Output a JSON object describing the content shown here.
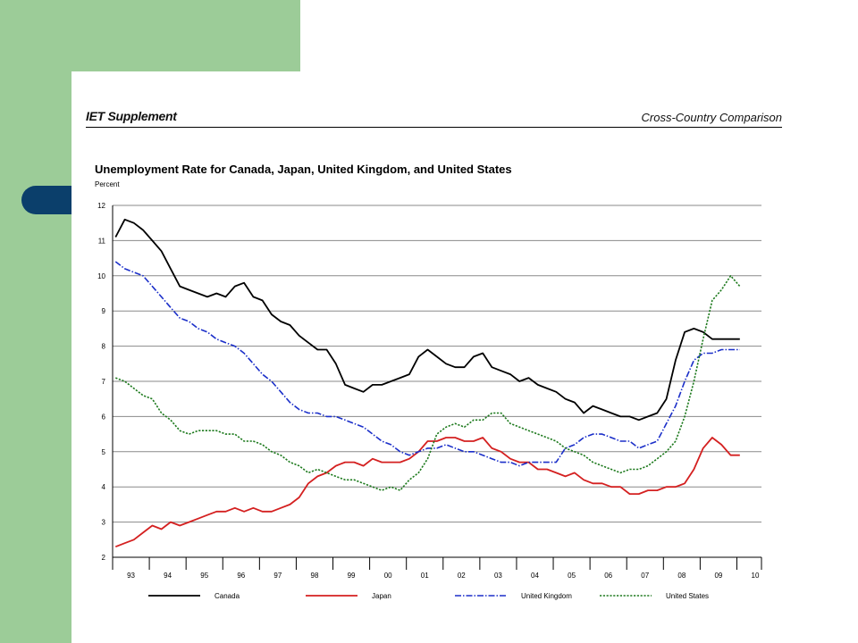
{
  "header": {
    "left": "IET Supplement",
    "right": "Cross-Country Comparison"
  },
  "colors": {
    "sidebar_green": "#9ccc98",
    "tab_navy": "#0b3f6b",
    "canada": "#000000",
    "japan": "#d42020",
    "united_kingdom": "#1b2fc9",
    "united_states": "#1e7a1e"
  },
  "chart_data": {
    "type": "line",
    "title": "Unemployment Rate for Canada, Japan, United Kingdom, and United States",
    "ylabel": "Percent",
    "xlabel": "",
    "ylim": [
      2,
      12
    ],
    "yticks": [
      2,
      3,
      4,
      5,
      6,
      7,
      8,
      9,
      10,
      11,
      12
    ],
    "xlim": [
      1993.0,
      2010.67
    ],
    "xticks": [
      "93",
      "94",
      "95",
      "96",
      "97",
      "98",
      "99",
      "00",
      "01",
      "02",
      "03",
      "04",
      "05",
      "06",
      "07",
      "08",
      "09",
      "10"
    ],
    "grid": "horizontal",
    "legend_position": "bottom",
    "series": [
      {
        "name": "Canada",
        "color": "#000000",
        "style": "solid",
        "x": [
          1993.08,
          1993.33,
          1993.58,
          1993.83,
          1994.08,
          1994.33,
          1994.58,
          1994.83,
          1995.08,
          1995.33,
          1995.58,
          1995.83,
          1996.08,
          1996.33,
          1996.58,
          1996.83,
          1997.08,
          1997.33,
          1997.58,
          1997.83,
          1998.08,
          1998.33,
          1998.58,
          1998.83,
          1999.08,
          1999.33,
          1999.58,
          1999.83,
          2000.08,
          2000.33,
          2000.58,
          2000.83,
          2001.08,
          2001.33,
          2001.58,
          2001.83,
          2002.08,
          2002.33,
          2002.58,
          2002.83,
          2003.08,
          2003.33,
          2003.58,
          2003.83,
          2004.08,
          2004.33,
          2004.58,
          2004.83,
          2005.08,
          2005.33,
          2005.58,
          2005.83,
          2006.08,
          2006.33,
          2006.58,
          2006.83,
          2007.08,
          2007.33,
          2007.58,
          2007.83,
          2008.08,
          2008.33,
          2008.58,
          2008.83,
          2009.08,
          2009.33,
          2009.58,
          2009.83,
          2010.08
        ],
        "values": [
          11.1,
          11.6,
          11.5,
          11.3,
          11.0,
          10.7,
          10.2,
          9.7,
          9.6,
          9.5,
          9.4,
          9.5,
          9.4,
          9.7,
          9.8,
          9.4,
          9.3,
          8.9,
          8.7,
          8.6,
          8.3,
          8.1,
          7.9,
          7.9,
          7.5,
          6.9,
          6.8,
          6.7,
          6.9,
          6.9,
          7.0,
          7.1,
          7.2,
          7.7,
          7.9,
          7.7,
          7.5,
          7.4,
          7.4,
          7.7,
          7.8,
          7.4,
          7.3,
          7.2,
          7.0,
          7.1,
          6.9,
          6.8,
          6.7,
          6.5,
          6.4,
          6.1,
          6.3,
          6.2,
          6.1,
          6.0,
          6.0,
          5.9,
          6.0,
          6.1,
          6.5,
          7.6,
          8.4,
          8.5,
          8.4,
          8.2,
          8.2,
          8.2,
          8.2
        ]
      },
      {
        "name": "Japan",
        "color": "#d42020",
        "style": "solid",
        "x": [
          1993.08,
          1993.33,
          1993.58,
          1993.83,
          1994.08,
          1994.33,
          1994.58,
          1994.83,
          1995.08,
          1995.33,
          1995.58,
          1995.83,
          1996.08,
          1996.33,
          1996.58,
          1996.83,
          1997.08,
          1997.33,
          1997.58,
          1997.83,
          1998.08,
          1998.33,
          1998.58,
          1998.83,
          1999.08,
          1999.33,
          1999.58,
          1999.83,
          2000.08,
          2000.33,
          2000.58,
          2000.83,
          2001.08,
          2001.33,
          2001.58,
          2001.83,
          2002.08,
          2002.33,
          2002.58,
          2002.83,
          2003.08,
          2003.33,
          2003.58,
          2003.83,
          2004.08,
          2004.33,
          2004.58,
          2004.83,
          2005.08,
          2005.33,
          2005.58,
          2005.83,
          2006.08,
          2006.33,
          2006.58,
          2006.83,
          2007.08,
          2007.33,
          2007.58,
          2007.83,
          2008.08,
          2008.33,
          2008.58,
          2008.83,
          2009.08,
          2009.33,
          2009.58,
          2009.83,
          2010.08
        ],
        "values": [
          2.3,
          2.4,
          2.5,
          2.7,
          2.9,
          2.8,
          3.0,
          2.9,
          3.0,
          3.1,
          3.2,
          3.3,
          3.3,
          3.4,
          3.3,
          3.4,
          3.3,
          3.3,
          3.4,
          3.5,
          3.7,
          4.1,
          4.3,
          4.4,
          4.6,
          4.7,
          4.7,
          4.6,
          4.8,
          4.7,
          4.7,
          4.7,
          4.8,
          5.0,
          5.3,
          5.3,
          5.4,
          5.4,
          5.3,
          5.3,
          5.4,
          5.1,
          5.0,
          4.8,
          4.7,
          4.7,
          4.5,
          4.5,
          4.4,
          4.3,
          4.4,
          4.2,
          4.1,
          4.1,
          4.0,
          4.0,
          3.8,
          3.8,
          3.9,
          3.9,
          4.0,
          4.0,
          4.1,
          4.5,
          5.1,
          5.4,
          5.2,
          4.9,
          4.9
        ]
      },
      {
        "name": "United Kingdom",
        "color": "#1b2fc9",
        "style": "dashdot",
        "x": [
          1993.08,
          1993.33,
          1993.58,
          1993.83,
          1994.08,
          1994.33,
          1994.58,
          1994.83,
          1995.08,
          1995.33,
          1995.58,
          1995.83,
          1996.08,
          1996.33,
          1996.58,
          1996.83,
          1997.08,
          1997.33,
          1997.58,
          1997.83,
          1998.08,
          1998.33,
          1998.58,
          1998.83,
          1999.08,
          1999.33,
          1999.58,
          1999.83,
          2000.08,
          2000.33,
          2000.58,
          2000.83,
          2001.08,
          2001.33,
          2001.58,
          2001.83,
          2002.08,
          2002.33,
          2002.58,
          2002.83,
          2003.08,
          2003.33,
          2003.58,
          2003.83,
          2004.08,
          2004.33,
          2004.58,
          2004.83,
          2005.08,
          2005.33,
          2005.58,
          2005.83,
          2006.08,
          2006.33,
          2006.58,
          2006.83,
          2007.08,
          2007.33,
          2007.58,
          2007.83,
          2008.08,
          2008.33,
          2008.58,
          2008.83,
          2009.08,
          2009.33,
          2009.58,
          2009.83,
          2010.08
        ],
        "values": [
          10.4,
          10.2,
          10.1,
          10.0,
          9.7,
          9.4,
          9.1,
          8.8,
          8.7,
          8.5,
          8.4,
          8.2,
          8.1,
          8.0,
          7.8,
          7.5,
          7.2,
          7.0,
          6.7,
          6.4,
          6.2,
          6.1,
          6.1,
          6.0,
          6.0,
          5.9,
          5.8,
          5.7,
          5.5,
          5.3,
          5.2,
          5.0,
          4.9,
          5.0,
          5.1,
          5.1,
          5.2,
          5.1,
          5.0,
          5.0,
          4.9,
          4.8,
          4.7,
          4.7,
          4.6,
          4.7,
          4.7,
          4.7,
          4.7,
          5.1,
          5.2,
          5.4,
          5.5,
          5.5,
          5.4,
          5.3,
          5.3,
          5.1,
          5.2,
          5.3,
          5.8,
          6.3,
          7.0,
          7.6,
          7.8,
          7.8,
          7.9,
          7.9,
          7.9
        ]
      },
      {
        "name": "United States",
        "color": "#1e7a1e",
        "style": "dotted",
        "x": [
          1993.08,
          1993.33,
          1993.58,
          1993.83,
          1994.08,
          1994.33,
          1994.58,
          1994.83,
          1995.08,
          1995.33,
          1995.58,
          1995.83,
          1996.08,
          1996.33,
          1996.58,
          1996.83,
          1997.08,
          1997.33,
          1997.58,
          1997.83,
          1998.08,
          1998.33,
          1998.58,
          1998.83,
          1999.08,
          1999.33,
          1999.58,
          1999.83,
          2000.08,
          2000.33,
          2000.58,
          2000.83,
          2001.08,
          2001.33,
          2001.58,
          2001.83,
          2002.08,
          2002.33,
          2002.58,
          2002.83,
          2003.08,
          2003.33,
          2003.58,
          2003.83,
          2004.08,
          2004.33,
          2004.58,
          2004.83,
          2005.08,
          2005.33,
          2005.58,
          2005.83,
          2006.08,
          2006.33,
          2006.58,
          2006.83,
          2007.08,
          2007.33,
          2007.58,
          2007.83,
          2008.08,
          2008.33,
          2008.58,
          2008.83,
          2009.08,
          2009.33,
          2009.58,
          2009.83,
          2010.08
        ],
        "values": [
          7.1,
          7.0,
          6.8,
          6.6,
          6.5,
          6.1,
          5.9,
          5.6,
          5.5,
          5.6,
          5.6,
          5.6,
          5.5,
          5.5,
          5.3,
          5.3,
          5.2,
          5.0,
          4.9,
          4.7,
          4.6,
          4.4,
          4.5,
          4.4,
          4.3,
          4.2,
          4.2,
          4.1,
          4.0,
          3.9,
          4.0,
          3.9,
          4.2,
          4.4,
          4.8,
          5.5,
          5.7,
          5.8,
          5.7,
          5.9,
          5.9,
          6.1,
          6.1,
          5.8,
          5.7,
          5.6,
          5.5,
          5.4,
          5.3,
          5.1,
          5.0,
          4.9,
          4.7,
          4.6,
          4.5,
          4.4,
          4.5,
          4.5,
          4.6,
          4.8,
          5.0,
          5.3,
          6.0,
          7.0,
          8.2,
          9.3,
          9.6,
          10.0,
          9.7
        ]
      }
    ]
  }
}
